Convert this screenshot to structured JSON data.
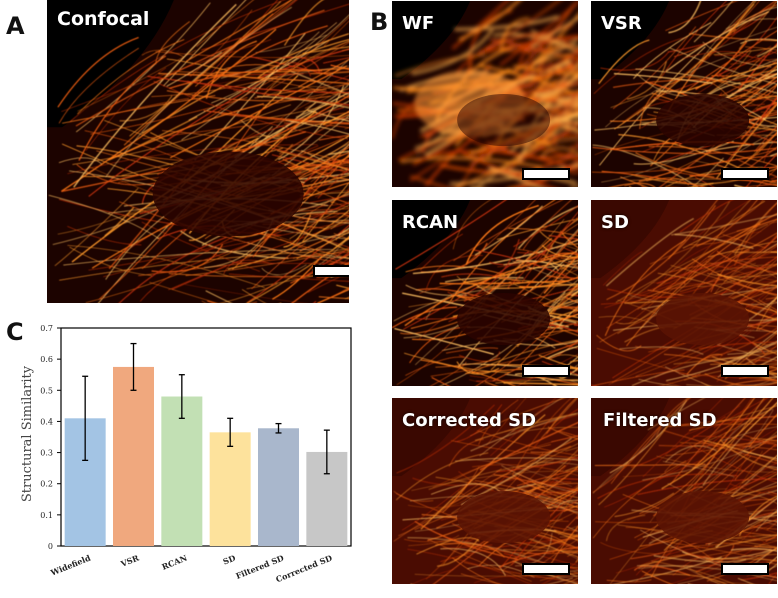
{
  "panels": {
    "a": {
      "letter": "A",
      "label": "Confocal"
    },
    "b": {
      "letter": "B",
      "labels": [
        "WF",
        "VSR",
        "RCAN",
        "SD",
        "Corrected SD",
        "Filtered SD"
      ]
    },
    "c": {
      "letter": "C"
    }
  },
  "colors": {
    "widefield": "#a3c4e4",
    "vsr": "#f0a87e",
    "rcan": "#c2e0b4",
    "sd": "#fde29c",
    "filtered_sd": "#a9b7cc",
    "corrected_sd": "#c7c7c7",
    "micro_bright": "#ff9a2a",
    "micro_mid": "#c0300a",
    "micro_dark": "#2a0500"
  },
  "chart_data": {
    "type": "bar",
    "categories": [
      "Widefield",
      "VSR",
      "RCAN",
      "SD",
      "Filtered SD",
      "Corrected SD"
    ],
    "values": [
      0.41,
      0.575,
      0.48,
      0.365,
      0.378,
      0.302
    ],
    "errors": [
      0.135,
      0.075,
      0.07,
      0.045,
      0.015,
      0.07
    ],
    "ylabel": "Structural Similarity",
    "ylim": [
      0,
      0.7
    ],
    "yticks": [
      "0",
      "0.1",
      "0.2",
      "0.3",
      "0.4",
      "0.5",
      "0.6",
      "0.7"
    ],
    "grid": false
  }
}
